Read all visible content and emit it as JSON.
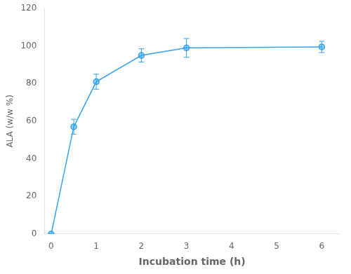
{
  "chart_data": {
    "type": "line",
    "x": [
      0,
      0.5,
      1,
      2,
      3,
      6
    ],
    "values": [
      0,
      57,
      81,
      95,
      99,
      99.5
    ],
    "yerr": [
      0,
      4,
      4,
      3.5,
      5,
      3
    ],
    "xlabel": "Incubation time (h)",
    "ylabel": "ALA (w/w %)",
    "xlim": [
      -0.15,
      6.4
    ],
    "ylim": [
      0,
      120
    ],
    "xticks": [
      0,
      1,
      2,
      3,
      4,
      5,
      6
    ],
    "yticks": [
      0,
      20,
      40,
      60,
      80,
      100,
      120
    ],
    "marker": "circle",
    "grid": false
  }
}
